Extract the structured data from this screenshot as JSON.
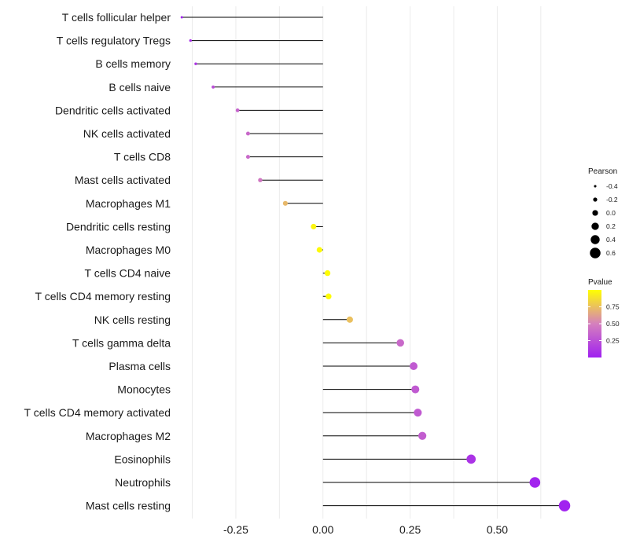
{
  "chart_data": {
    "type": "lollipop",
    "title": "",
    "xlabel": "",
    "ylabel": "",
    "xlim": [
      -0.41,
      0.72
    ],
    "x_ticks": [
      -0.25,
      0.0,
      0.25,
      0.5
    ],
    "x_tick_labels": [
      "-0.25",
      "0.00",
      "0.25",
      "0.50"
    ],
    "baseline": 0,
    "categories": [
      "T cells follicular helper",
      "T cells regulatory  Tregs",
      "B cells memory",
      "B cells naive",
      "Dendritic cells activated",
      "NK cells activated",
      "T cells CD8",
      "Mast cells activated",
      "Macrophages M1",
      "Dendritic cells resting",
      "Macrophages M0",
      "T cells CD4 naive",
      "T cells CD4 memory resting",
      "NK cells resting",
      "T cells gamma delta",
      "Plasma cells",
      "Monocytes",
      "T cells CD4 memory activated",
      "Macrophages M2",
      "Eosinophils",
      "Neutrophils",
      "Mast cells resting"
    ],
    "pearson": [
      -0.405,
      -0.38,
      -0.365,
      -0.315,
      -0.245,
      -0.215,
      -0.215,
      -0.18,
      -0.108,
      -0.027,
      -0.01,
      0.013,
      0.016,
      0.077,
      0.222,
      0.26,
      0.265,
      0.272,
      0.285,
      0.425,
      0.608,
      0.693
    ],
    "pvalue": [
      0.02,
      0.08,
      0.12,
      0.25,
      0.35,
      0.38,
      0.38,
      0.45,
      0.72,
      0.96,
      0.98,
      0.99,
      0.99,
      0.75,
      0.38,
      0.3,
      0.3,
      0.3,
      0.32,
      0.1,
      0.02,
      0.01
    ],
    "legend": {
      "size_title": "Pearson",
      "size_values": [
        -0.4,
        -0.2,
        0.0,
        0.2,
        0.4,
        0.6
      ],
      "size_labels": [
        "-0.4",
        "-0.2",
        "0.0",
        "0.2",
        "0.4",
        "0.6"
      ],
      "color_title": "Pvalue",
      "color_ticks": [
        0.75,
        0.5,
        0.25
      ],
      "color_labels": [
        "0.75",
        "0.50",
        "0.25"
      ],
      "color_range": [
        0.0,
        1.0
      ],
      "color_low": "#a020f0",
      "color_mid": "#d580bd",
      "color_high": "#ffff00",
      "placement": "right"
    },
    "grid": true
  }
}
